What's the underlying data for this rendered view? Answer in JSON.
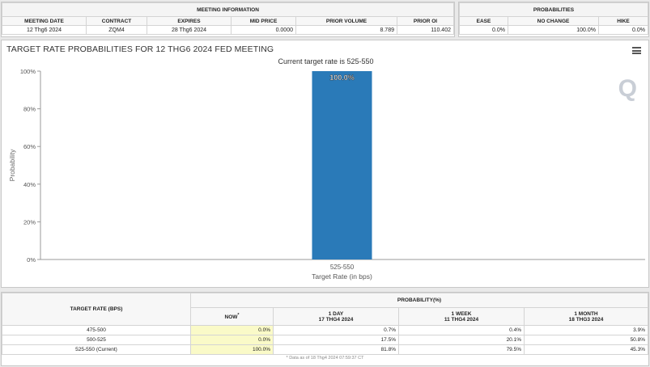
{
  "meeting_info": {
    "title": "MEETING INFORMATION",
    "headers": [
      "MEETING DATE",
      "CONTRACT",
      "EXPIRES",
      "MID PRICE",
      "PRIOR VOLUME",
      "PRIOR OI"
    ],
    "row": [
      "12 Thg6 2024",
      "ZQM4",
      "28 Thg6 2024",
      "0.0000",
      "8.789",
      "110.402"
    ]
  },
  "probabilities": {
    "title": "PROBABILITIES",
    "headers": [
      "EASE",
      "NO CHANGE",
      "HIKE"
    ],
    "row": [
      "0.0%",
      "100.0%",
      "0.0%"
    ]
  },
  "chart_data": {
    "type": "bar",
    "title": "TARGET RATE PROBABILITIES FOR 12 THG6 2024 FED MEETING",
    "subtitle": "Current target rate is 525-550",
    "categories": [
      "525-550"
    ],
    "values": [
      100.0
    ],
    "data_labels": [
      "100.0%"
    ],
    "xlabel": "Target Rate (in bps)",
    "ylabel": "Probability",
    "ylim": [
      0,
      100
    ],
    "yticks": [
      "0%",
      "20%",
      "40%",
      "60%",
      "80%",
      "100%"
    ],
    "grid": false,
    "bar_color": "#2a7ab8",
    "watermark": "Q"
  },
  "bottom_table": {
    "col_header": "TARGET RATE (BPS)",
    "prob_header": "PROBABILITY(%)",
    "periods": [
      {
        "label": "NOW",
        "sup": "*",
        "date": ""
      },
      {
        "label": "1 DAY",
        "date": "17 THG4 2024"
      },
      {
        "label": "1 WEEK",
        "date": "11 THG4 2024"
      },
      {
        "label": "1 MONTH",
        "date": "18 THG3 2024"
      }
    ],
    "rows": [
      {
        "rate": "475-500",
        "values": [
          "0.0%",
          "0.7%",
          "0.4%",
          "3.9%"
        ]
      },
      {
        "rate": "500-525",
        "values": [
          "0.0%",
          "17.5%",
          "20.1%",
          "50.8%"
        ]
      },
      {
        "rate": "525-550 (Current)",
        "values": [
          "100.0%",
          "81.8%",
          "79.5%",
          "45.3%"
        ]
      }
    ],
    "footnote": "* Data as of 18 Thg4 2024 07:59:37 CT"
  }
}
